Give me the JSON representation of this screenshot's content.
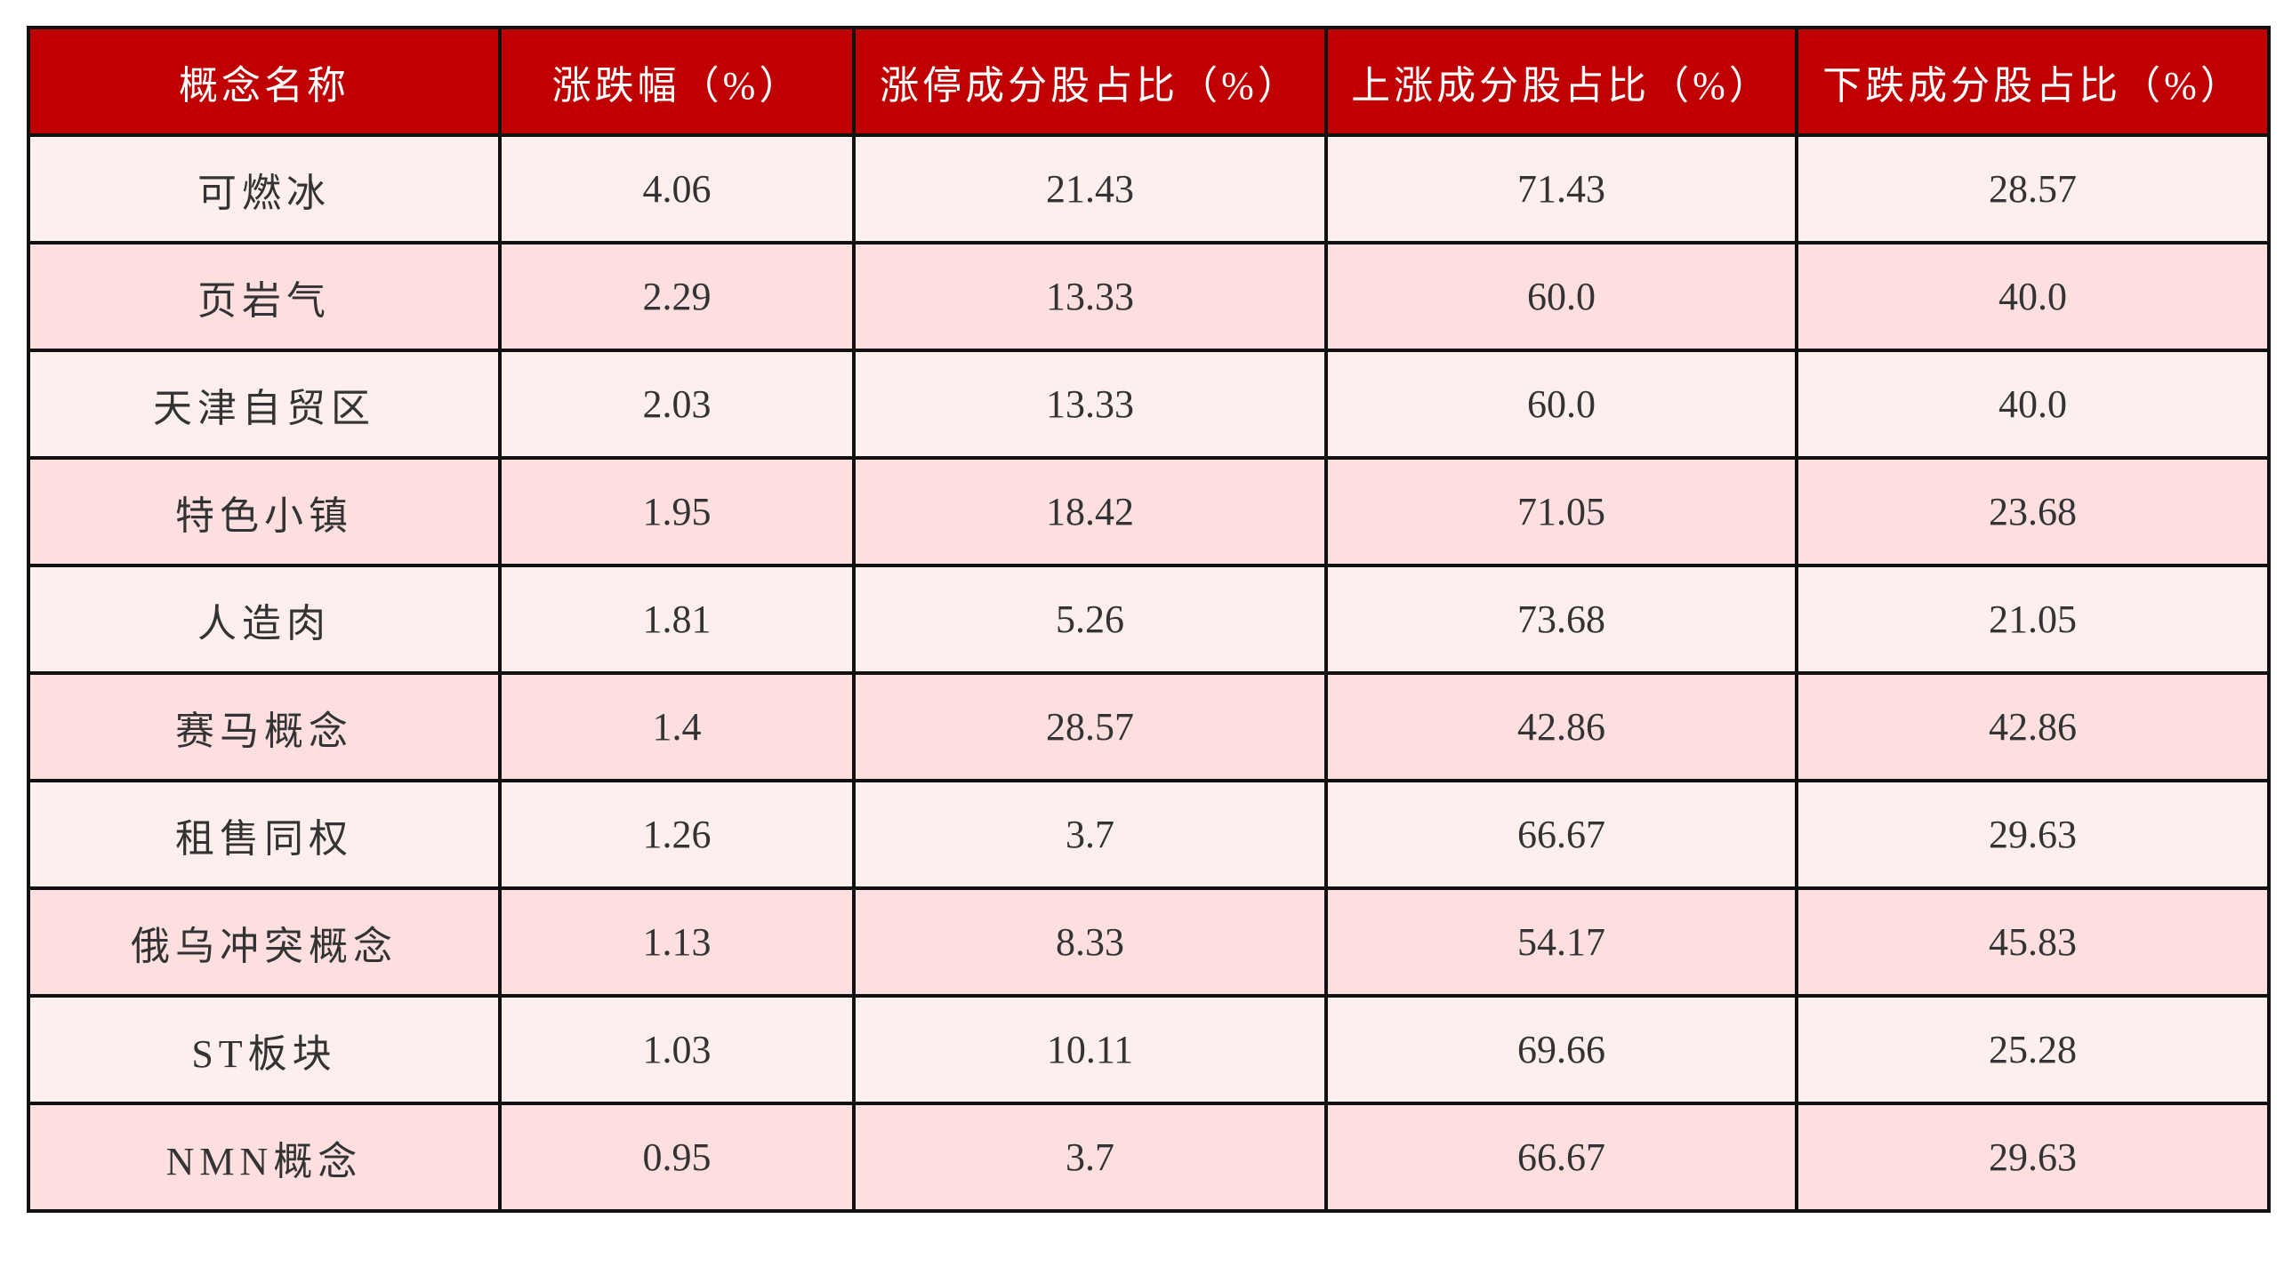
{
  "colors": {
    "header_bg": "#C00000",
    "row_odd": "#FEEFEF",
    "row_even": "#FDDFE0",
    "border": "#111111"
  },
  "table": {
    "headers": [
      "概念名称",
      "涨跌幅（%）",
      "涨停成分股占比（%）",
      "上涨成分股占比（%）",
      "下跌成分股占比（%）"
    ],
    "rows": [
      [
        "可燃冰",
        "4.06",
        "21.43",
        "71.43",
        "28.57"
      ],
      [
        "页岩气",
        "2.29",
        "13.33",
        "60.0",
        "40.0"
      ],
      [
        "天津自贸区",
        "2.03",
        "13.33",
        "60.0",
        "40.0"
      ],
      [
        "特色小镇",
        "1.95",
        "18.42",
        "71.05",
        "23.68"
      ],
      [
        "人造肉",
        "1.81",
        "5.26",
        "73.68",
        "21.05"
      ],
      [
        "赛马概念",
        "1.4",
        "28.57",
        "42.86",
        "42.86"
      ],
      [
        "租售同权",
        "1.26",
        "3.7",
        "66.67",
        "29.63"
      ],
      [
        "俄乌冲突概念",
        "1.13",
        "8.33",
        "54.17",
        "45.83"
      ],
      [
        "ST板块",
        "1.03",
        "10.11",
        "69.66",
        "25.28"
      ],
      [
        "NMN概念",
        "0.95",
        "3.7",
        "66.67",
        "29.63"
      ]
    ]
  }
}
